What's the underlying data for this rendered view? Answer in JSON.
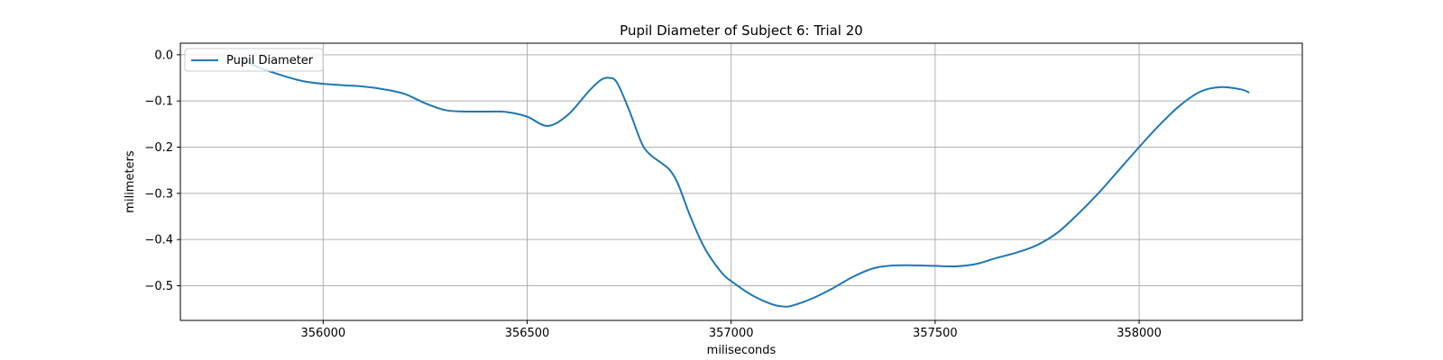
{
  "chart_data": {
    "type": "line",
    "title": "Pupil Diameter of Subject 6: Trial 20",
    "xlabel": "miliseconds",
    "ylabel": "milimeters",
    "xlim": [
      355650,
      358400
    ],
    "ylim": [
      -0.575,
      0.025
    ],
    "xticks": [
      356000,
      356500,
      357000,
      357500,
      358000
    ],
    "yticks": [
      0.0,
      -0.1,
      -0.2,
      -0.3,
      -0.4,
      -0.5
    ],
    "ytick_labels": [
      "0.0",
      "−0.1",
      "−0.2",
      "−0.3",
      "−0.4",
      "−0.5"
    ],
    "grid": true,
    "legend": {
      "placement": "upper-left",
      "entries": [
        "Pupil Diameter"
      ]
    },
    "series": [
      {
        "name": "Pupil Diameter",
        "color": "#1f77b4",
        "x": [
          355800,
          355850,
          355900,
          355950,
          356000,
          356050,
          356100,
          356150,
          356200,
          356250,
          356300,
          356350,
          356400,
          356450,
          356500,
          356550,
          356600,
          356650,
          356680,
          356700,
          356720,
          356750,
          356780,
          356800,
          356830,
          356850,
          356870,
          356900,
          356930,
          356950,
          356980,
          357000,
          357050,
          357100,
          357130,
          357150,
          357200,
          357250,
          357300,
          357350,
          357400,
          357450,
          357500,
          357550,
          357600,
          357650,
          357700,
          357750,
          357800,
          357850,
          357900,
          357950,
          358000,
          358050,
          358100,
          358150,
          358200,
          358250,
          358270
        ],
        "values": [
          -0.01,
          -0.03,
          -0.045,
          -0.057,
          -0.063,
          -0.066,
          -0.069,
          -0.075,
          -0.085,
          -0.105,
          -0.12,
          -0.123,
          -0.123,
          -0.124,
          -0.134,
          -0.154,
          -0.13,
          -0.08,
          -0.055,
          -0.05,
          -0.06,
          -0.12,
          -0.19,
          -0.215,
          -0.235,
          -0.25,
          -0.28,
          -0.35,
          -0.41,
          -0.44,
          -0.475,
          -0.49,
          -0.52,
          -0.54,
          -0.545,
          -0.543,
          -0.527,
          -0.505,
          -0.48,
          -0.462,
          -0.456,
          -0.456,
          -0.457,
          -0.458,
          -0.453,
          -0.44,
          -0.428,
          -0.412,
          -0.385,
          -0.345,
          -0.3,
          -0.25,
          -0.2,
          -0.152,
          -0.11,
          -0.08,
          -0.07,
          -0.075,
          -0.082
        ]
      }
    ]
  }
}
